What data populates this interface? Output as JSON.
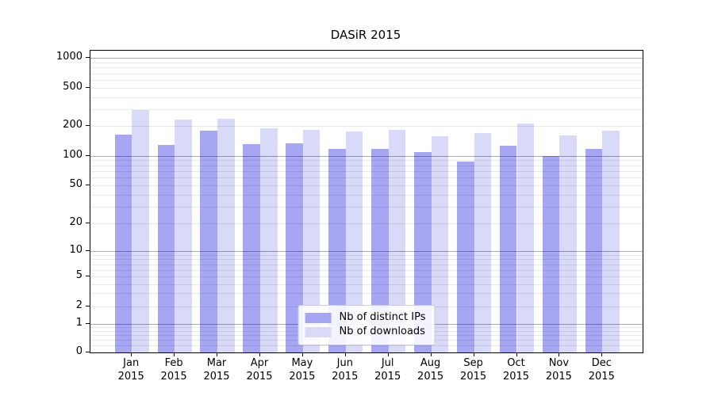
{
  "chart_data": {
    "type": "bar",
    "title": "DASiR 2015",
    "categories": [
      "Jan",
      "Feb",
      "Mar",
      "Apr",
      "May",
      "Jun",
      "Jul",
      "Aug",
      "Sep",
      "Oct",
      "Nov",
      "Dec"
    ],
    "x_year_label": "2015",
    "series": [
      {
        "name": "Nb of distinct IPs",
        "color": "#a6a6f2",
        "values": [
          165,
          130,
          180,
          132,
          134,
          117,
          117,
          110,
          87,
          126,
          100,
          118
        ]
      },
      {
        "name": "Nb of downloads",
        "color": "#d9d9f8",
        "values": [
          292,
          234,
          240,
          191,
          185,
          178,
          183,
          159,
          169,
          212,
          162,
          180
        ]
      }
    ],
    "y_ticks": [
      0,
      1,
      2,
      5,
      10,
      20,
      50,
      100,
      200,
      500,
      1000
    ],
    "y_scale": "log (0 pinned at baseline)",
    "ylim": [
      0,
      1400
    ],
    "xlabel": "",
    "ylabel": "",
    "grid": "on",
    "legend_position": "lower center"
  },
  "colors": {
    "background": "#ffffff",
    "bar_distinct_ips": "#a6a6f2",
    "bar_downloads": "#d9d9f8",
    "axis_line": "#000000",
    "grid_major": "#aaaaaa",
    "grid_minor": "#e8e8e8",
    "legend_border": "#cccccc"
  }
}
